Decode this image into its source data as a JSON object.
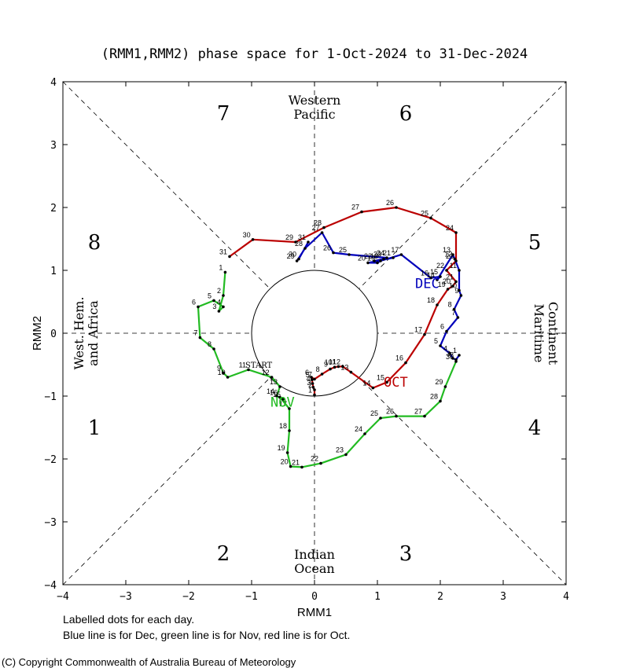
{
  "chart_data": {
    "type": "line",
    "title": "(RMM1,RMM2) phase space for  1-Oct-2024 to 31-Dec-2024",
    "xlabel": "RMM1",
    "ylabel": "RMM2",
    "xlim": [
      -4,
      4
    ],
    "ylim": [
      -4,
      4
    ],
    "x_ticks": [
      "-4",
      "-3",
      "-2",
      "-1",
      "0",
      "1",
      "2",
      "3",
      "4"
    ],
    "y_ticks": [
      "-4",
      "-3",
      "-2",
      "-1",
      "0",
      "1",
      "2",
      "3",
      "4"
    ],
    "phases": [
      "1",
      "2",
      "3",
      "4",
      "5",
      "6",
      "7",
      "8"
    ],
    "regions": {
      "top": [
        "Western",
        "Pacific"
      ],
      "bottom": [
        "Indian",
        "Ocean"
      ],
      "left": [
        "West. Hem.",
        "and Africa"
      ],
      "right": [
        "Maritime",
        "Continent"
      ]
    },
    "start_label": "START",
    "series": [
      {
        "name": "OCT",
        "color": "#bb0000",
        "label_pos": [
          1.1,
          -0.85
        ],
        "points": [
          {
            "d": "1",
            "x": 0.0,
            "y": -0.98
          },
          {
            "d": "2",
            "x": 0.0,
            "y": -0.9
          },
          {
            "d": "3",
            "x": -0.02,
            "y": -0.86
          },
          {
            "d": "4",
            "x": -0.03,
            "y": -0.8
          },
          {
            "d": "5",
            "x": -0.04,
            "y": -0.74
          },
          {
            "d": "6",
            "x": -0.05,
            "y": -0.7
          },
          {
            "d": "7",
            "x": 0.0,
            "y": -0.73
          },
          {
            "d": "8",
            "x": 0.12,
            "y": -0.65
          },
          {
            "d": "9",
            "x": 0.25,
            "y": -0.57
          },
          {
            "d": "10",
            "x": 0.32,
            "y": -0.54
          },
          {
            "d": "11",
            "x": 0.38,
            "y": -0.53
          },
          {
            "d": "12",
            "x": 0.45,
            "y": -0.53
          },
          {
            "d": "13",
            "x": 0.58,
            "y": -0.62
          },
          {
            "d": "14",
            "x": 0.93,
            "y": -0.87
          },
          {
            "d": "15",
            "x": 1.15,
            "y": -0.78
          },
          {
            "d": "16",
            "x": 1.45,
            "y": -0.47
          },
          {
            "d": "17",
            "x": 1.75,
            "y": -0.02
          },
          {
            "d": "18",
            "x": 1.95,
            "y": 0.45
          },
          {
            "d": "19",
            "x": 2.12,
            "y": 0.7
          },
          {
            "d": "20",
            "x": 2.2,
            "y": 0.75
          },
          {
            "d": "21",
            "x": 2.25,
            "y": 0.82
          },
          {
            "d": "22",
            "x": 2.1,
            "y": 1.0
          },
          {
            "d": "23",
            "x": 2.25,
            "y": 1.15
          },
          {
            "d": "24",
            "x": 2.25,
            "y": 1.6
          },
          {
            "d": "25",
            "x": 1.85,
            "y": 1.83
          },
          {
            "d": "26",
            "x": 1.3,
            "y": 2.0
          },
          {
            "d": "27",
            "x": 0.75,
            "y": 1.93
          },
          {
            "d": "28",
            "x": 0.15,
            "y": 1.68
          },
          {
            "d": "29",
            "x": -0.3,
            "y": 1.45
          },
          {
            "d": "30",
            "x": -0.98,
            "y": 1.49
          },
          {
            "d": "31",
            "x": -1.35,
            "y": 1.22
          }
        ]
      },
      {
        "name": "NOV",
        "color": "#22bb22",
        "label_pos": [
          -0.7,
          -1.17
        ],
        "points": [
          {
            "d": "1",
            "x": -1.42,
            "y": 0.97
          },
          {
            "d": "2",
            "x": -1.45,
            "y": 0.6
          },
          {
            "d": "3",
            "x": -1.52,
            "y": 0.35
          },
          {
            "d": "4",
            "x": -1.45,
            "y": 0.42
          },
          {
            "d": "5",
            "x": -1.6,
            "y": 0.52
          },
          {
            "d": "6",
            "x": -1.85,
            "y": 0.42
          },
          {
            "d": "7",
            "x": -1.82,
            "y": -0.07
          },
          {
            "d": "8",
            "x": -1.6,
            "y": -0.25
          },
          {
            "d": "9",
            "x": -1.45,
            "y": -0.63
          },
          {
            "d": "10",
            "x": -1.38,
            "y": -0.7
          },
          {
            "d": "11",
            "x": -1.05,
            "y": -0.58
          },
          {
            "d": "12",
            "x": -0.68,
            "y": -0.7
          },
          {
            "d": "13",
            "x": -0.55,
            "y": -0.85
          },
          {
            "d": "14",
            "x": -0.6,
            "y": -1.0
          },
          {
            "d": "15",
            "x": -0.5,
            "y": -1.05
          },
          {
            "d": "16",
            "x": -0.55,
            "y": -1.02
          },
          {
            "d": "17",
            "x": -0.4,
            "y": -1.2
          },
          {
            "d": "18",
            "x": -0.4,
            "y": -1.55
          },
          {
            "d": "19",
            "x": -0.43,
            "y": -1.9
          },
          {
            "d": "20",
            "x": -0.38,
            "y": -2.12
          },
          {
            "d": "21",
            "x": -0.2,
            "y": -2.13
          },
          {
            "d": "22",
            "x": 0.1,
            "y": -2.07
          },
          {
            "d": "23",
            "x": 0.5,
            "y": -1.93
          },
          {
            "d": "24",
            "x": 0.8,
            "y": -1.6
          },
          {
            "d": "25",
            "x": 1.05,
            "y": -1.35
          },
          {
            "d": "26",
            "x": 1.3,
            "y": -1.32
          },
          {
            "d": "27",
            "x": 1.75,
            "y": -1.32
          },
          {
            "d": "28",
            "x": 2.0,
            "y": -1.08
          },
          {
            "d": "29",
            "x": 2.08,
            "y": -0.85
          },
          {
            "d": "30",
            "x": 2.25,
            "y": -0.45
          }
        ]
      },
      {
        "name": "DEC",
        "color": "#0000bb",
        "label_pos": [
          1.6,
          0.72
        ],
        "points": [
          {
            "d": "1",
            "x": 2.3,
            "y": -0.35
          },
          {
            "d": "2",
            "x": 2.25,
            "y": -0.42
          },
          {
            "d": "3",
            "x": 2.2,
            "y": -0.4
          },
          {
            "d": "4",
            "x": 2.15,
            "y": -0.32
          },
          {
            "d": "5",
            "x": 2.0,
            "y": -0.2
          },
          {
            "d": "6",
            "x": 2.1,
            "y": 0.03
          },
          {
            "d": "7",
            "x": 2.28,
            "y": 0.25
          },
          {
            "d": "8",
            "x": 2.22,
            "y": 0.38
          },
          {
            "d": "9",
            "x": 2.33,
            "y": 0.6
          },
          {
            "d": "10",
            "x": 2.3,
            "y": 0.68
          },
          {
            "d": "11",
            "x": 2.3,
            "y": 1.0
          },
          {
            "d": "12",
            "x": 2.23,
            "y": 1.18
          },
          {
            "d": "13",
            "x": 2.2,
            "y": 1.25
          },
          {
            "d": "14",
            "x": 1.95,
            "y": 0.85
          },
          {
            "d": "15",
            "x": 2.0,
            "y": 0.9
          },
          {
            "d": "16",
            "x": 1.85,
            "y": 0.88
          },
          {
            "d": "17",
            "x": 1.38,
            "y": 1.25
          },
          {
            "d": "18",
            "x": 1.05,
            "y": 1.15
          },
          {
            "d": "19",
            "x": 1.0,
            "y": 1.12
          },
          {
            "d": "20",
            "x": 0.85,
            "y": 1.12
          },
          {
            "d": "21",
            "x": 1.25,
            "y": 1.2
          },
          {
            "d": "22",
            "x": 0.95,
            "y": 1.15
          },
          {
            "d": "23",
            "x": 1.1,
            "y": 1.18
          },
          {
            "d": "24",
            "x": 1.15,
            "y": 1.2
          },
          {
            "d": "25",
            "x": 0.55,
            "y": 1.25
          },
          {
            "d": "26",
            "x": 0.3,
            "y": 1.28
          },
          {
            "d": "27",
            "x": 0.12,
            "y": 1.6
          },
          {
            "d": "28",
            "x": -0.15,
            "y": 1.35
          },
          {
            "d": "29",
            "x": -0.28,
            "y": 1.15
          },
          {
            "d": "30",
            "x": -0.25,
            "y": 1.18
          },
          {
            "d": "31",
            "x": -0.1,
            "y": 1.45
          }
        ]
      }
    ]
  },
  "footer": {
    "note1": "Labelled dots for each day.",
    "note2": "Blue line is for Dec, green line is for Nov, red line is for Oct.",
    "copyright": "(C) Copyright Commonwealth of Australia Bureau of Meteorology"
  }
}
